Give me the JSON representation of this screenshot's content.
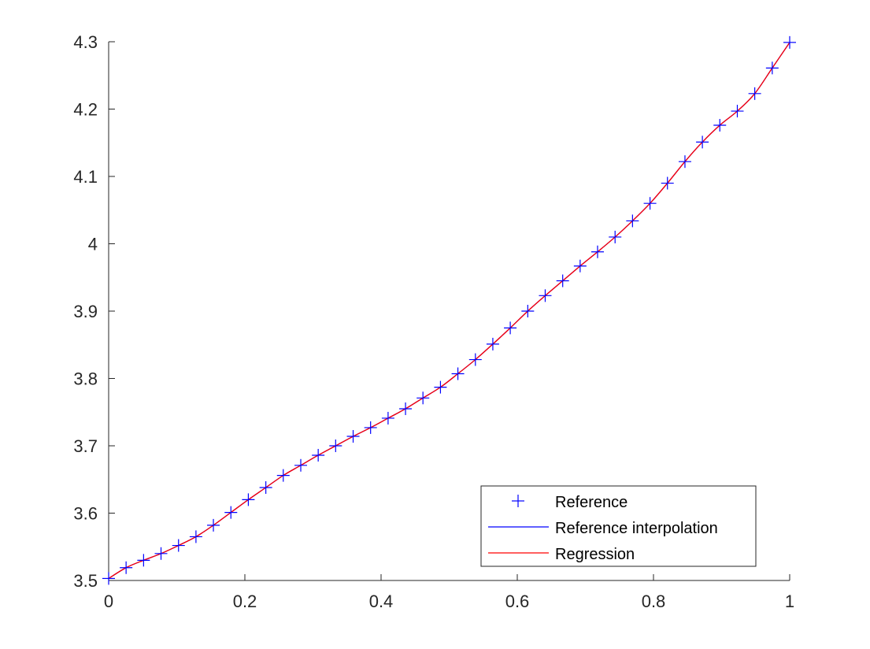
{
  "chart_data": {
    "type": "line",
    "title": "",
    "xlabel": "",
    "ylabel": "",
    "xlim": [
      0,
      1
    ],
    "ylim": [
      3.5,
      4.3
    ],
    "xticks": [
      0,
      0.2,
      0.4,
      0.6,
      0.8,
      1
    ],
    "yticks": [
      3.5,
      3.6,
      3.7,
      3.8,
      3.9,
      4,
      4.1,
      4.2,
      4.3
    ],
    "xtick_labels": [
      "0",
      "0.2",
      "0.4",
      "0.6",
      "0.8",
      "1"
    ],
    "ytick_labels": [
      "3.5",
      "3.6",
      "3.7",
      "3.8",
      "3.9",
      "4",
      "4.1",
      "4.2",
      "4.3"
    ],
    "grid": false,
    "legend_position": "bottom-right",
    "series": [
      {
        "name": "Reference",
        "style": "markers",
        "marker": "plus",
        "color": "#0000ff",
        "x": [
          0,
          0.0256,
          0.0513,
          0.0769,
          0.1026,
          0.1282,
          0.1538,
          0.1795,
          0.2051,
          0.2308,
          0.2564,
          0.2821,
          0.3077,
          0.3333,
          0.359,
          0.3846,
          0.4103,
          0.4359,
          0.4615,
          0.4872,
          0.5128,
          0.5385,
          0.5641,
          0.5897,
          0.6154,
          0.641,
          0.6667,
          0.6923,
          0.7179,
          0.7436,
          0.7692,
          0.7949,
          0.8205,
          0.8462,
          0.8718,
          0.8974,
          0.9231,
          0.9487,
          0.9744,
          1
        ],
        "y": [
          3.503,
          3.519,
          3.53,
          3.54,
          3.552,
          3.565,
          3.582,
          3.601,
          3.62,
          3.638,
          3.656,
          3.671,
          3.686,
          3.7,
          3.714,
          3.727,
          3.741,
          3.755,
          3.771,
          3.787,
          3.807,
          3.828,
          3.851,
          3.875,
          3.9,
          3.923,
          3.945,
          3.967,
          3.988,
          4.01,
          4.034,
          4.06,
          4.09,
          4.122,
          4.151,
          4.176,
          4.197,
          4.223,
          4.261,
          4.299
        ]
      },
      {
        "name": "Reference interpolation",
        "style": "line",
        "color": "#0000ff",
        "x": [
          0,
          0.0256,
          0.0513,
          0.0769,
          0.1026,
          0.1282,
          0.1538,
          0.1795,
          0.2051,
          0.2308,
          0.2564,
          0.2821,
          0.3077,
          0.3333,
          0.359,
          0.3846,
          0.4103,
          0.4359,
          0.4615,
          0.4872,
          0.5128,
          0.5385,
          0.5641,
          0.5897,
          0.6154,
          0.641,
          0.6667,
          0.6923,
          0.7179,
          0.7436,
          0.7692,
          0.7949,
          0.8205,
          0.8462,
          0.8718,
          0.8974,
          0.9231,
          0.9487,
          0.9744,
          1
        ],
        "y": [
          3.503,
          3.519,
          3.53,
          3.54,
          3.552,
          3.565,
          3.582,
          3.601,
          3.62,
          3.638,
          3.656,
          3.671,
          3.686,
          3.7,
          3.714,
          3.727,
          3.741,
          3.755,
          3.771,
          3.787,
          3.807,
          3.828,
          3.851,
          3.875,
          3.9,
          3.923,
          3.945,
          3.967,
          3.988,
          4.01,
          4.034,
          4.06,
          4.09,
          4.122,
          4.151,
          4.176,
          4.197,
          4.223,
          4.261,
          4.299
        ]
      },
      {
        "name": "Regression",
        "style": "line",
        "color": "#ff0000",
        "x": [
          0,
          0.0256,
          0.0513,
          0.0769,
          0.1026,
          0.1282,
          0.1538,
          0.1795,
          0.2051,
          0.2308,
          0.2564,
          0.2821,
          0.3077,
          0.3333,
          0.359,
          0.3846,
          0.4103,
          0.4359,
          0.4615,
          0.4872,
          0.5128,
          0.5385,
          0.5641,
          0.5897,
          0.6154,
          0.641,
          0.6667,
          0.6923,
          0.7179,
          0.7436,
          0.7692,
          0.7949,
          0.8205,
          0.8462,
          0.8718,
          0.8974,
          0.9231,
          0.9487,
          0.9744,
          1
        ],
        "y": [
          3.503,
          3.519,
          3.53,
          3.54,
          3.552,
          3.565,
          3.582,
          3.601,
          3.62,
          3.638,
          3.656,
          3.671,
          3.686,
          3.7,
          3.714,
          3.727,
          3.741,
          3.755,
          3.771,
          3.787,
          3.807,
          3.828,
          3.851,
          3.875,
          3.9,
          3.923,
          3.945,
          3.967,
          3.988,
          4.01,
          4.034,
          4.06,
          4.09,
          4.122,
          4.151,
          4.176,
          4.197,
          4.223,
          4.261,
          4.299
        ]
      }
    ]
  }
}
